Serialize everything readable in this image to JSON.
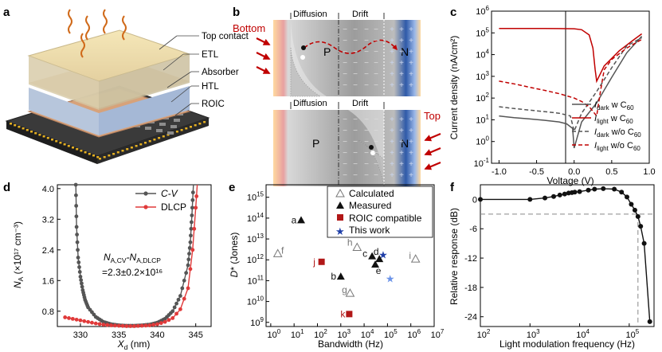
{
  "panels": {
    "a": {
      "letter": "a",
      "layers": [
        "Top contact",
        "ETL",
        "Absorber",
        "HTL",
        "ROIC"
      ]
    },
    "b": {
      "letter": "b",
      "bottom_label": "Bottom",
      "top_label": "Top",
      "region_diffusion": "Diffusion",
      "region_drift": "Drift",
      "p_label": "P",
      "n_label": "N"
    },
    "c": {
      "letter": "c",
      "ylabel": "Current density (nA/cm²)",
      "xlabel": "Voltage (V)",
      "xticks": [
        "-1.0",
        "-0.5",
        "0.0",
        "0.5",
        "1.0"
      ],
      "yexps": [
        "-1",
        "0",
        "1",
        "2",
        "3",
        "4",
        "5",
        "6"
      ],
      "legend": [
        {
          "main": "I",
          "sub": "dark",
          "rest": " w C",
          "sub2": "60",
          "color": "#555555",
          "dash": false
        },
        {
          "main": "I",
          "sub": "light",
          "rest": " w C",
          "sub2": "60",
          "color": "#c00000",
          "dash": false
        },
        {
          "main": "I",
          "sub": "dark",
          "rest": " w/o C",
          "sub2": "60",
          "color": "#555555",
          "dash": true
        },
        {
          "main": "I",
          "sub": "light",
          "rest": " w/o C",
          "sub2": "60",
          "color": "#c00000",
          "dash": true
        }
      ]
    },
    "d": {
      "letter": "d",
      "xlabel": "X",
      "xlabel_sub": "d",
      "xlabel_unit": " (nm)",
      "ylabel": "N",
      "ylabel_sub": "A",
      "ylabel_unit": " (×10¹⁷ cm⁻³)",
      "xticks": [
        "330",
        "335",
        "340",
        "345"
      ],
      "yticks": [
        "0.8",
        "1.6",
        "2.4",
        "3.2",
        "4.0"
      ],
      "legend": [
        {
          "label": "C-V",
          "color": "#555555"
        },
        {
          "label": "DLCP",
          "color": "#e03a3a"
        }
      ],
      "annotation_line1_a": "N",
      "annotation_line1_a_sub": "A,CV",
      "annotation_line1_b": "-N",
      "annotation_line1_b_sub": "A,DLCP",
      "annotation_line2": "=2.3±0.2×10¹⁶"
    },
    "e": {
      "letter": "e",
      "xlabel": "Bandwidth (Hz)",
      "ylabel_main": "D",
      "ylabel_rest": "* (Jones)",
      "xexps": [
        "0",
        "1",
        "2",
        "3",
        "4",
        "5",
        "6",
        "7"
      ],
      "yexps": [
        "9",
        "10",
        "11",
        "12",
        "13",
        "14",
        "15"
      ],
      "legend": [
        "Calculated",
        "Measured",
        "ROIC compatible",
        "This work"
      ],
      "points": [
        {
          "label": "a",
          "x": 20,
          "y": 80000000000000.0,
          "kind": "measured"
        },
        {
          "label": "b",
          "x": 1000,
          "y": 160000000000.0,
          "kind": "measured"
        },
        {
          "label": "c",
          "x": 22000,
          "y": 1500000000000.0,
          "kind": "measured"
        },
        {
          "label": "d",
          "x": 45000,
          "y": 1100000000000.0,
          "kind": "measured"
        },
        {
          "label": "e",
          "x": 30000,
          "y": 600000000000.0,
          "kind": "measured"
        },
        {
          "label": "f",
          "x": 2,
          "y": 2000000000000.0,
          "kind": "calculated"
        },
        {
          "label": "g",
          "x": 2500,
          "y": 25000000000.0,
          "kind": "calculated"
        },
        {
          "label": "h",
          "x": 5000,
          "y": 4000000000000.0,
          "kind": "calculated"
        },
        {
          "label": "i",
          "x": 1600000,
          "y": 1100000000000.0,
          "kind": "calculated"
        },
        {
          "label": "j",
          "x": 150,
          "y": 800000000000.0,
          "kind": "roic"
        },
        {
          "label": "k",
          "x": 2300,
          "y": 2500000000.0,
          "kind": "roic"
        },
        {
          "label": "",
          "x": 65000,
          "y": 1800000000000.0,
          "kind": "thiswork"
        },
        {
          "label": "",
          "x": 130000,
          "y": 130000000000.0,
          "kind": "thiswork_light"
        }
      ]
    },
    "f": {
      "letter": "f",
      "xlabel": "Light modulation frequency (Hz)",
      "ylabel": "Relative response (dB)",
      "xexps": [
        "2",
        "3",
        "4",
        "5"
      ],
      "yticks": [
        "0",
        "-6",
        "-12",
        "-18",
        "-24"
      ],
      "cutoff_db": -3,
      "cutoff_freq": 150000
    }
  },
  "chart_data": [
    {
      "panel": "c",
      "type": "line",
      "title": "",
      "xlabel": "Voltage (V)",
      "ylabel": "Current density (nA/cm²)",
      "xlim": [
        -1.1,
        1.0
      ],
      "ylim_log10": [
        -1,
        6
      ],
      "yscale": "log",
      "series": [
        {
          "name": "I_dark w C60",
          "x": [
            -1.0,
            -0.8,
            -0.6,
            -0.4,
            -0.2,
            -0.1,
            -0.02,
            0.0,
            0.1,
            0.3,
            0.5,
            0.7,
            0.9
          ],
          "y": [
            15,
            12.5,
            11,
            9.5,
            8,
            6.5,
            4,
            0.5,
            8,
            60,
            900,
            12000,
            70000
          ]
        },
        {
          "name": "I_light w C60",
          "x": [
            -1.0,
            -0.8,
            -0.6,
            -0.4,
            -0.2,
            0.0,
            0.1,
            0.2,
            0.25,
            0.28,
            0.3,
            0.4,
            0.6,
            0.8,
            0.9
          ],
          "y": [
            160000,
            160000,
            160000,
            159000,
            158000,
            155000,
            140000,
            80000,
            20000,
            2000,
            600,
            3000,
            15000,
            50000,
            90000
          ]
        },
        {
          "name": "I_dark w/o C60",
          "x": [
            -1.0,
            -0.8,
            -0.6,
            -0.4,
            -0.2,
            -0.05,
            0.0,
            0.1,
            0.3,
            0.5,
            0.7,
            0.9
          ],
          "y": [
            40,
            33,
            28,
            24,
            20,
            15,
            3,
            20,
            200,
            2500,
            25000,
            60000
          ]
        },
        {
          "name": "I_light w/o C60",
          "x": [
            -1.0,
            -0.8,
            -0.6,
            -0.4,
            -0.2,
            0.0,
            0.1,
            0.2,
            0.3,
            0.35,
            0.4,
            0.5,
            0.7,
            0.9
          ],
          "y": [
            600,
            450,
            320,
            230,
            160,
            100,
            70,
            40,
            15,
            200,
            2000,
            6000,
            20000,
            50000
          ]
        }
      ]
    },
    {
      "panel": "d",
      "type": "line",
      "xlabel": "X_d (nm)",
      "ylabel": "N_A (×10^17 cm^-3)",
      "xlim": [
        327,
        347
      ],
      "ylim": [
        0.4,
        4.1
      ],
      "series": [
        {
          "name": "C-V",
          "x": [
            329.4,
            329.5,
            329.7,
            330.0,
            330.3,
            330.6,
            331,
            332,
            333,
            334,
            335,
            336,
            337,
            338,
            339,
            340,
            341,
            342,
            343,
            344,
            344.3,
            344.5,
            344.7
          ],
          "y": [
            4.1,
            3.0,
            2.2,
            1.7,
            1.35,
            1.1,
            0.9,
            0.65,
            0.52,
            0.46,
            0.43,
            0.42,
            0.42,
            0.43,
            0.45,
            0.5,
            0.6,
            0.8,
            1.2,
            2.0,
            2.6,
            3.3,
            4.1
          ]
        },
        {
          "name": "DLCP",
          "x": [
            328,
            329,
            330,
            331,
            332,
            333,
            334,
            335,
            336,
            337,
            338,
            339,
            340,
            341,
            342,
            343,
            344,
            344.6,
            345.0,
            345.2
          ],
          "y": [
            0.64,
            0.6,
            0.56,
            0.52,
            0.48,
            0.45,
            0.43,
            0.42,
            0.41,
            0.41,
            0.42,
            0.43,
            0.46,
            0.52,
            0.62,
            0.85,
            1.4,
            2.4,
            3.5,
            4.1
          ]
        }
      ]
    },
    {
      "panel": "e",
      "type": "scatter",
      "xlabel": "Bandwidth (Hz)",
      "ylabel": "D* (Jones)",
      "xlim_log10": [
        -0.2,
        7
      ],
      "ylim_log10": [
        8.8,
        15.6
      ],
      "xscale": "log",
      "yscale": "log"
    },
    {
      "panel": "f",
      "type": "line",
      "xlabel": "Light modulation frequency (Hz)",
      "ylabel": "Relative response (dB)",
      "xlim_log10": [
        2,
        5.5
      ],
      "ylim": [
        -26,
        3
      ],
      "xscale": "log",
      "series": [
        {
          "name": "response",
          "x": [
            100,
            1000,
            2000,
            3000,
            4000,
            5000,
            6000,
            7000,
            8000,
            10000,
            15000,
            20000,
            30000,
            50000,
            70000,
            90000,
            110000,
            130000,
            150000,
            170000,
            200000,
            260000
          ],
          "y": [
            0,
            0,
            0.3,
            0.6,
            0.9,
            1.1,
            1.3,
            1.4,
            1.5,
            1.6,
            1.9,
            2.1,
            2.2,
            2.1,
            1.5,
            0.5,
            -1.0,
            -2.2,
            -3.5,
            -5.5,
            -9.0,
            -25
          ]
        }
      ]
    }
  ]
}
